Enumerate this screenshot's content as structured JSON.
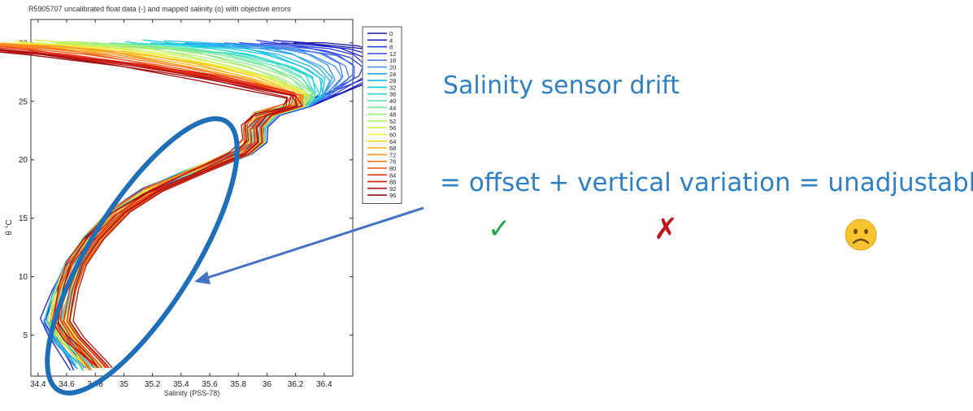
{
  "chart_data": {
    "type": "line",
    "title": "R5905707 uncalibrated float data (-) and mapped salinity (o) with objective errors",
    "xlabel": "Salinity (PSS-78)",
    "ylabel": "θ °C",
    "xlim": [
      34.35,
      36.6
    ],
    "ylim": [
      1.5,
      32
    ],
    "x_ticks": [
      "34.4",
      "34.6",
      "34.8",
      "35",
      "35.2",
      "35.4",
      "35.6",
      "35.8",
      "36",
      "36.2",
      "36.4"
    ],
    "y_ticks": [
      "5",
      "10",
      "15",
      "20",
      "25",
      "30"
    ],
    "grid": false,
    "legend_position": "right",
    "legend": [
      "0",
      "4",
      "8",
      "12",
      "16",
      "20",
      "24",
      "28",
      "32",
      "36",
      "40",
      "44",
      "48",
      "52",
      "56",
      "60",
      "64",
      "68",
      "72",
      "76",
      "80",
      "84",
      "88",
      "92",
      "96"
    ],
    "series_colors": [
      "#1616a0",
      "#2020c8",
      "#2a3ce0",
      "#3b5ce8",
      "#4a7aec",
      "#3e90ee",
      "#2aa4ee",
      "#1cb8ea",
      "#14c8e0",
      "#2cd8cc",
      "#58e2b4",
      "#78e89c",
      "#96ec84",
      "#b4ee6c",
      "#d2f054",
      "#eeee3c",
      "#fad22a",
      "#fbb424",
      "#fb9420",
      "#f8741c",
      "#f05218",
      "#e63014",
      "#d41a12",
      "#bc1212",
      "#9e0e10"
    ],
    "profile_shape": [
      [
        35.3,
        30.0
      ],
      [
        35.55,
        29.8
      ],
      [
        35.85,
        29.5
      ],
      [
        36.08,
        29.0
      ],
      [
        36.3,
        28.0
      ],
      [
        36.4,
        27.0
      ],
      [
        36.38,
        25.5
      ],
      [
        36.22,
        24.6
      ],
      [
        36.0,
        23.8
      ],
      [
        35.92,
        22.8
      ],
      [
        35.92,
        21.5
      ],
      [
        35.82,
        20.5
      ],
      [
        35.5,
        18.9
      ],
      [
        35.2,
        17.3
      ],
      [
        34.97,
        15.5
      ],
      [
        34.79,
        13.2
      ],
      [
        34.65,
        11.0
      ],
      [
        34.56,
        9.0
      ],
      [
        34.5,
        7.2
      ],
      [
        34.47,
        6.2
      ],
      [
        34.52,
        4.8
      ],
      [
        34.58,
        3.8
      ],
      [
        34.64,
        2.8
      ],
      [
        34.67,
        2.2
      ]
    ]
  },
  "annotations": {
    "headline": "Salinity sensor drift",
    "equation": "= offset + vertical variation = unadjustable",
    "check_symbol": "✓",
    "cross_symbol": "✗",
    "face_icon": "slightly-frowning-face-icon",
    "ellipse_color": "#1f6fb8",
    "arrow_color": "#4472c4"
  }
}
